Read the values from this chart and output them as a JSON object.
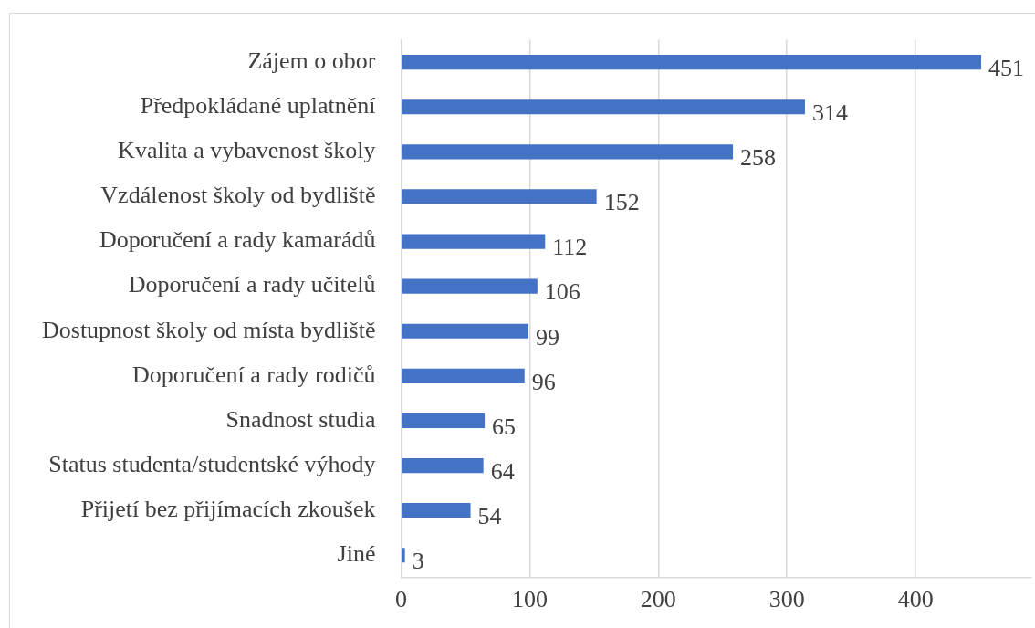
{
  "chart_data": {
    "type": "bar",
    "orientation": "horizontal",
    "categories": [
      "Zájem o obor",
      "Předpokládané uplatnění",
      "Kvalita a vybavenost školy",
      "Vzdálenost školy od bydliště",
      "Doporučení a rady kamarádů",
      "Doporučení a rady učitelů",
      "Dostupnost školy od místa bydliště",
      "Doporučení a rady rodičů",
      "Snadnost studia",
      "Status studenta/studentské výhody",
      "Přijetí bez přijímacích zkoušek",
      "Jiné"
    ],
    "values": [
      451,
      314,
      258,
      152,
      112,
      106,
      99,
      96,
      65,
      64,
      54,
      3
    ],
    "color": "#4472c4",
    "xlim": [
      0,
      490
    ],
    "xticks": [
      0,
      100,
      200,
      300,
      400
    ],
    "grid": "x",
    "data_labels": true,
    "legend": false
  }
}
